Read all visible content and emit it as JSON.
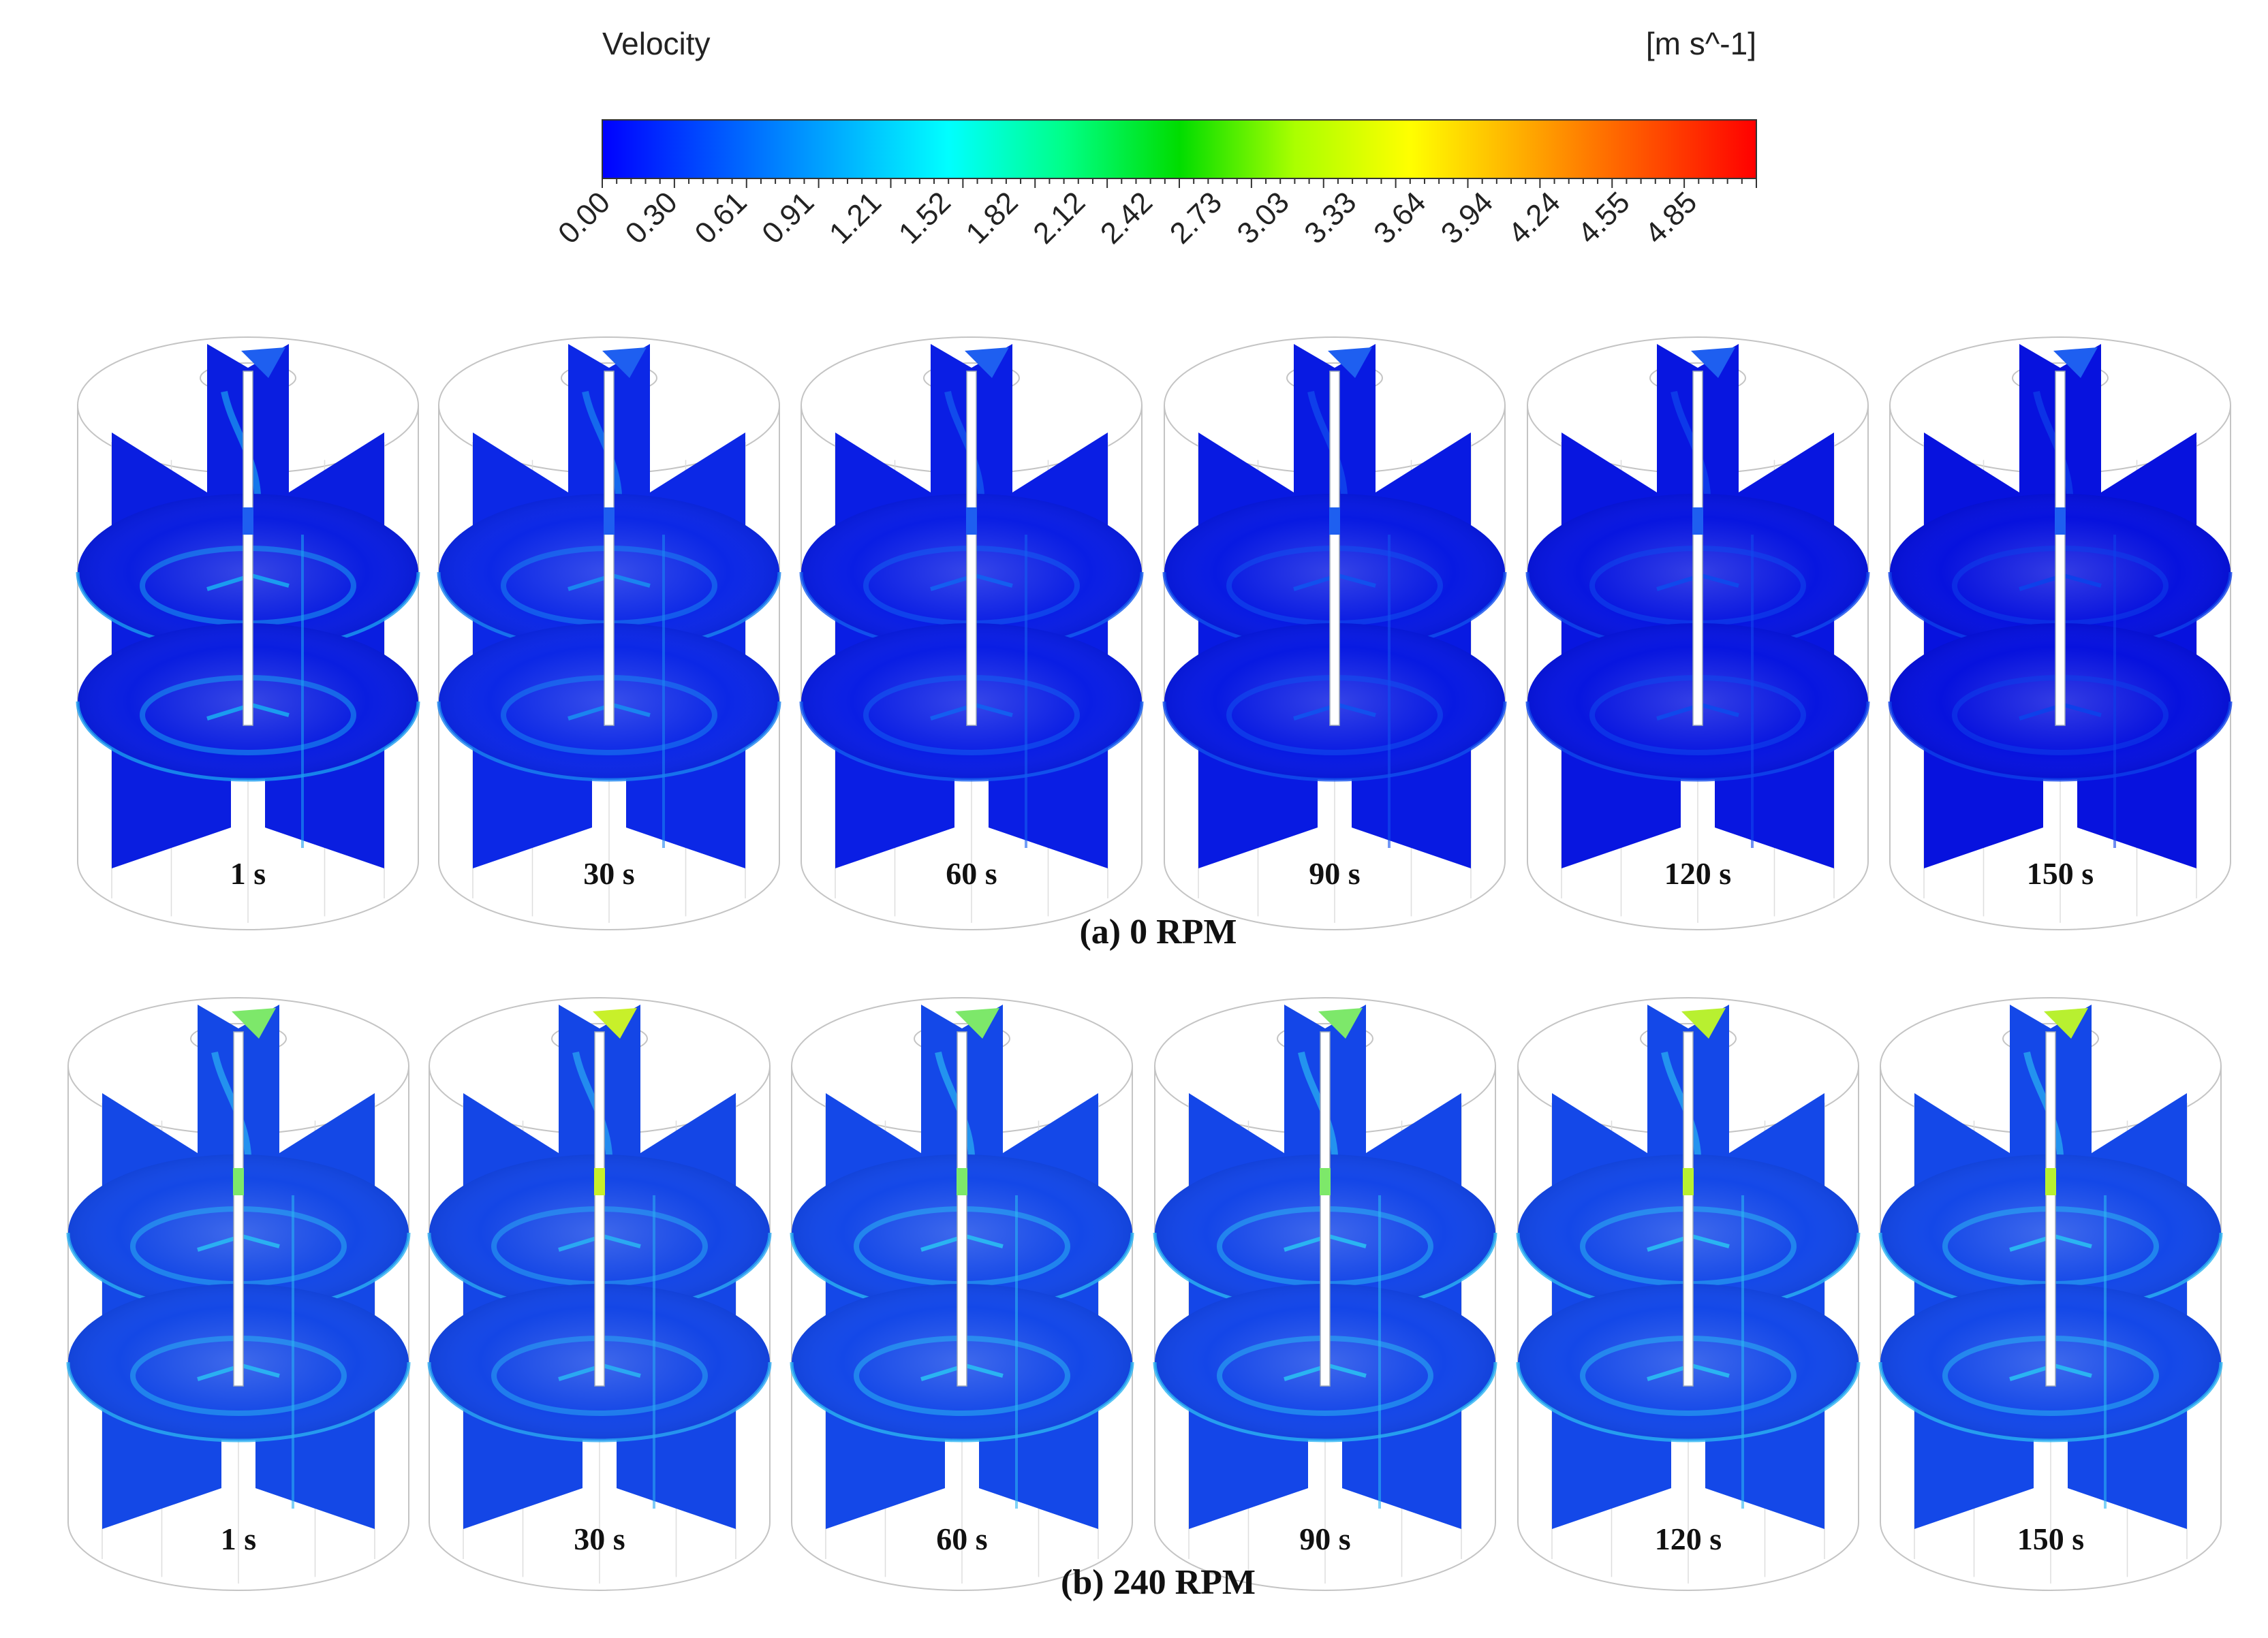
{
  "colorbar": {
    "title": "Velocity",
    "unit": "[m s^-1]",
    "ticks": [
      "0.00",
      "0.30",
      "0.61",
      "0.91",
      "1.21",
      "1.52",
      "1.82",
      "2.12",
      "2.42",
      "2.73",
      "3.03",
      "3.33",
      "3.64",
      "3.94",
      "4.24",
      "4.55",
      "4.85"
    ],
    "range": [
      0,
      5.15
    ],
    "stops": [
      "#0000ff",
      "#0055ff",
      "#00aaff",
      "#00ffff",
      "#00ff88",
      "#00dd00",
      "#aaff00",
      "#ffff00",
      "#ffaa00",
      "#ff5500",
      "#ff0000"
    ]
  },
  "rows": [
    {
      "caption": "(a) 0 RPM",
      "times": [
        "1 s",
        "30 s",
        "60 s",
        "90 s",
        "120 s",
        "150 s"
      ],
      "plane_colors": [
        "#0a1ee0",
        "#0c28e6",
        "#0a1ee4",
        "#081ae2",
        "#0816e0",
        "#0712de"
      ],
      "highlight_colors": [
        "#1a9cf0",
        "#1a84f0",
        "#145ef0",
        "#1250ee",
        "#1048ec",
        "#0e40ea"
      ],
      "tip_colors": [
        "#1e5ff0",
        "#1e5ff0",
        "#1e5ff0",
        "#1e5ff0",
        "#1e5ff0",
        "#1e5ff0"
      ]
    },
    {
      "caption": "(b) 240 RPM",
      "times": [
        "1 s",
        "30 s",
        "60 s",
        "90 s",
        "120 s",
        "150 s"
      ],
      "plane_colors": [
        "#1448e6",
        "#1446e6",
        "#1448e8",
        "#1446e8",
        "#1448e8",
        "#1448e8"
      ],
      "highlight_colors": [
        "#2ab0f2",
        "#2aa8f2",
        "#2ab4f2",
        "#2ab4f2",
        "#2ab4f2",
        "#2ab4f2"
      ],
      "tip_colors": [
        "#7de86a",
        "#c8f02a",
        "#7de86a",
        "#7de86a",
        "#b8f030",
        "#b8f030"
      ]
    }
  ]
}
